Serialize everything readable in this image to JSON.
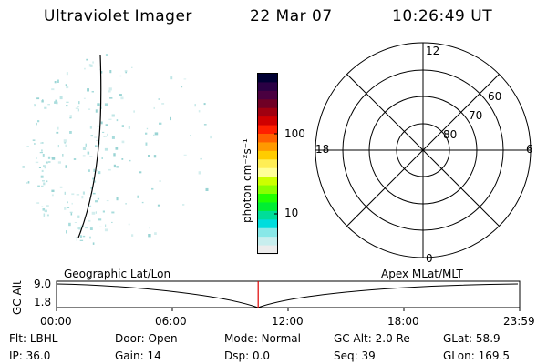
{
  "header": {
    "instrument": "Ultraviolet Imager",
    "date": "22 Mar 07",
    "time": "10:26:49 UT"
  },
  "colorbar": {
    "unit_label": "photon cm⁻²s⁻¹",
    "tick_labels": [
      "100",
      "10"
    ],
    "colors": [
      "#000033",
      "#2a0044",
      "#4a0040",
      "#700025",
      "#a00010",
      "#d00000",
      "#ff2000",
      "#ff6000",
      "#ff9900",
      "#ffcc00",
      "#ffee55",
      "#ffff99",
      "#ccff00",
      "#88ff00",
      "#22ff00",
      "#00ee33",
      "#00dd99",
      "#00dddd",
      "#88e8e8",
      "#c8eeee",
      "#ececec"
    ]
  },
  "polar_plot": {
    "mlt_labels": {
      "top": "12",
      "right": "6",
      "bottom": "0",
      "left": "18"
    },
    "lat_labels": [
      "60",
      "70",
      "80"
    ]
  },
  "timeline": {
    "left_title": "Geographic Lat/Lon",
    "right_title": "Apex MLat/MLT",
    "y_axis_label": "GC Alt",
    "y_ticks": [
      "9.0",
      "1.8"
    ],
    "x_ticks": [
      "00:00",
      "06:00",
      "12:00",
      "18:00",
      "23:59"
    ],
    "marker_time_hours": 10.45,
    "marker_color": "#e00000"
  },
  "footer": {
    "row1": [
      {
        "label": "Flt:",
        "value": "LBHL"
      },
      {
        "label": "Door:",
        "value": "Open"
      },
      {
        "label": "Mode:",
        "value": "Normal"
      },
      {
        "label": "GC Alt:",
        "value": "2.0 Re"
      },
      {
        "label": "GLat:",
        "value": "58.9"
      }
    ],
    "row2": [
      {
        "label": "IP:",
        "value": "36.0"
      },
      {
        "label": "Gain:",
        "value": "14"
      },
      {
        "label": "Dsp:",
        "value": "0.0"
      },
      {
        "label": "Seq:",
        "value": "39"
      },
      {
        "label": "GLon:",
        "value": "169.5"
      }
    ]
  }
}
